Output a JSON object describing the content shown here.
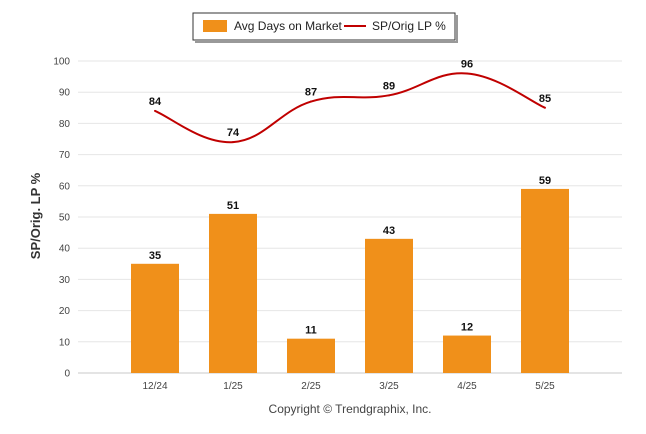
{
  "chart_data": {
    "type": "bar",
    "categories": [
      "12/24",
      "1/25",
      "2/25",
      "3/25",
      "4/25",
      "5/25"
    ],
    "series": [
      {
        "name": "Avg Days on Market",
        "type": "bar",
        "values": [
          35,
          51,
          11,
          43,
          12,
          59
        ],
        "color": "#F0901A"
      },
      {
        "name": "SP/Orig LP %",
        "type": "line",
        "values": [
          84,
          74,
          87,
          89,
          96,
          85
        ],
        "color": "#C00000"
      }
    ],
    "ylabel": "SP/Orig. LP %",
    "ylim": [
      0,
      100
    ],
    "yticks": [
      0,
      10,
      20,
      30,
      40,
      50,
      60,
      70,
      80,
      90,
      100
    ],
    "grid": true,
    "legend_position": "top-center"
  },
  "footer": {
    "copyright": "Copyright © Trendgraphix, Inc."
  }
}
